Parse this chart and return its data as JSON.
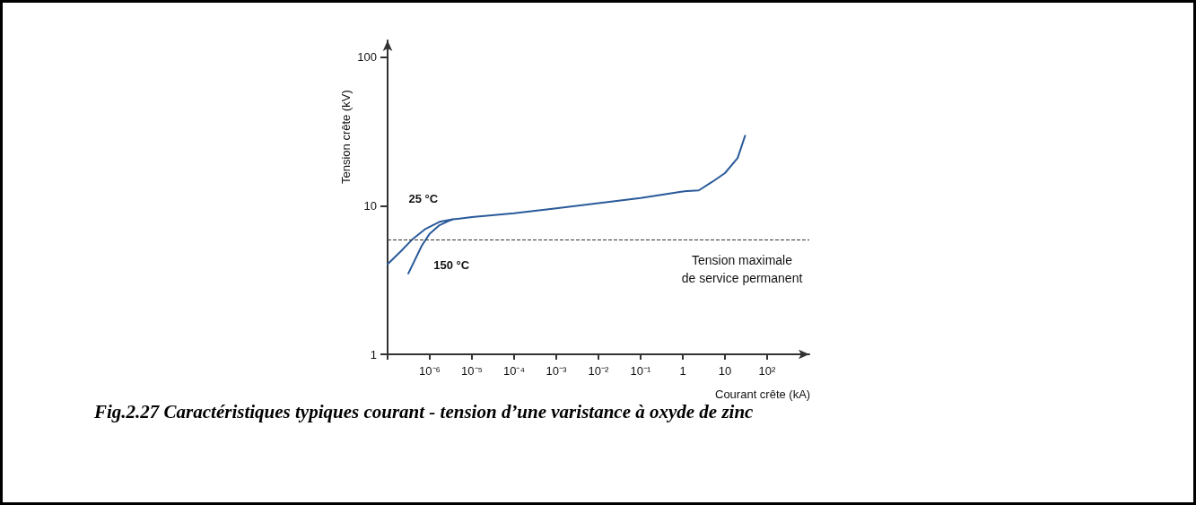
{
  "chart_data": {
    "type": "line",
    "xlabel": "Courant crête (kA)",
    "ylabel": "Tension crête (kV)",
    "log": "xy",
    "grid": false,
    "legend": false,
    "marker": "none",
    "line_style": "solid",
    "xlim": [
      1e-07,
      1000
    ],
    "ylim": [
      1,
      130
    ],
    "xticks": [
      {
        "value": 1e-07,
        "label": null
      },
      {
        "value": 1e-06,
        "label": "10⁻⁶"
      },
      {
        "value": 1e-05,
        "label": "10⁻⁵"
      },
      {
        "value": 0.0001,
        "label": "10⁻⁴"
      },
      {
        "value": 0.001,
        "label": "10⁻³"
      },
      {
        "value": 0.01,
        "label": "10⁻²"
      },
      {
        "value": 0.1,
        "label": "10⁻¹"
      },
      1,
      10,
      {
        "value": 100,
        "label": "10²"
      }
    ],
    "yticks": [
      1,
      10,
      100
    ],
    "series": [
      {
        "name": "25 °C",
        "color": "#2a5a9a",
        "x": [
          1e-07,
          2e-07,
          4e-07,
          8e-07,
          1.7e-06,
          3.5e-06,
          1e-05,
          0.0001,
          0.001,
          0.01,
          0.1,
          1,
          2.4,
          5,
          10,
          20,
          30
        ],
        "values": [
          4.05,
          4.9,
          6.0,
          7.0,
          7.8,
          8.1,
          8.4,
          8.9,
          9.6,
          10.4,
          11.3,
          12.5,
          12.7,
          14.5,
          16.6,
          21,
          29.6
        ]
      },
      {
        "name": "150 °C",
        "color": "#2a5a9a",
        "x": [
          3.1e-07,
          6.5e-07,
          1e-06,
          1.7e-06,
          2.8e-06,
          3.5e-06
        ],
        "values": [
          3.5,
          5.4,
          6.5,
          7.4,
          7.9,
          8.1
        ]
      }
    ],
    "ref_lines": [
      {
        "axis": "y",
        "value": 5.9,
        "label": "Tension maximale\nde service permanent",
        "line_style": "dashed",
        "color": "#333333"
      }
    ],
    "annotations": [
      "Fig.2.27 Caractéristiques typiques courant - tension d’une varistance à oxyde de zinc"
    ]
  }
}
